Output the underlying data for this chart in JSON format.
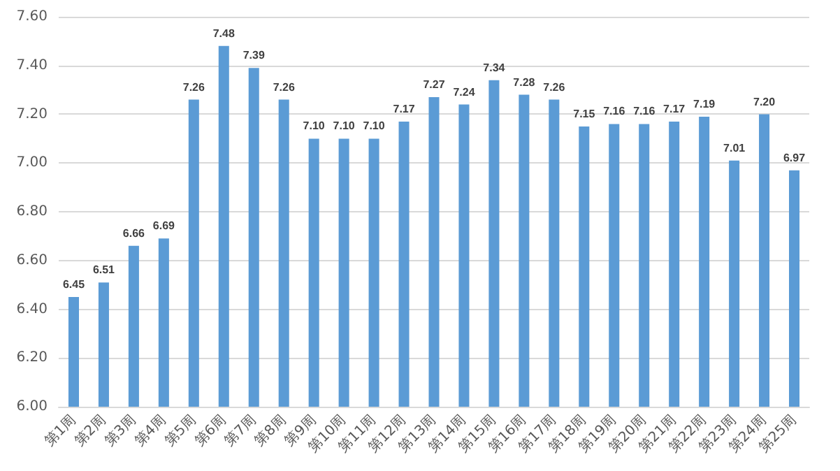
{
  "chart_data": {
    "type": "bar",
    "categories": [
      "第1周",
      "第2周",
      "第3周",
      "第4周",
      "第5周",
      "第6周",
      "第7周",
      "第8周",
      "第9周",
      "第10周",
      "第11周",
      "第12周",
      "第13周",
      "第14周",
      "第15周",
      "第16周",
      "第17周",
      "第18周",
      "第19周",
      "第20周",
      "第21周",
      "第22周",
      "第23周",
      "第24周",
      "第25周"
    ],
    "values": [
      6.45,
      6.51,
      6.66,
      6.69,
      7.26,
      7.48,
      7.39,
      7.26,
      7.1,
      7.1,
      7.1,
      7.17,
      7.27,
      7.24,
      7.34,
      7.28,
      7.26,
      7.15,
      7.16,
      7.16,
      7.17,
      7.19,
      7.01,
      7.2,
      6.97
    ],
    "value_labels": [
      "6.45",
      "6.51",
      "6.66",
      "6.69",
      "7.26",
      "7.48",
      "7.39",
      "7.26",
      "7.10",
      "7.10",
      "7.10",
      "7.17",
      "7.27",
      "7.24",
      "7.34",
      "7.28",
      "7.26",
      "7.15",
      "7.16",
      "7.16",
      "7.17",
      "7.19",
      "7.01",
      "7.20",
      "6.97"
    ],
    "color": "#5b9bd5",
    "ylim": [
      6,
      7.6
    ],
    "yticks": [
      {
        "value": 6,
        "label": "6.00"
      },
      {
        "value": 6.2,
        "label": "6.20"
      },
      {
        "value": 6.4,
        "label": "6.40"
      },
      {
        "value": 6.6,
        "label": "6.60"
      },
      {
        "value": 6.8,
        "label": "6.80"
      },
      {
        "value": 7,
        "label": "7.00"
      },
      {
        "value": 7.2,
        "label": "7.20"
      },
      {
        "value": 7.4,
        "label": "7.40"
      },
      {
        "value": 7.6,
        "label": "7.60"
      }
    ],
    "grid": "y"
  }
}
